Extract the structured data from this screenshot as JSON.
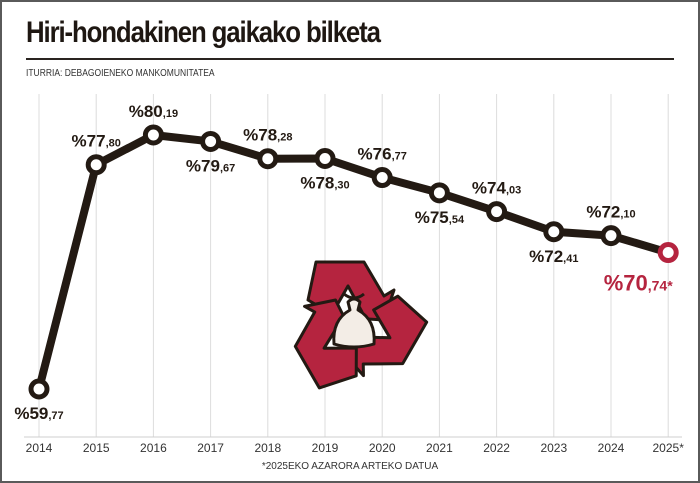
{
  "title": "Hiri-hondakinen gaikako bilketa",
  "source": "ITURRIA: DEBAGOIENEKO MANKOMUNITATEA",
  "footnote": "*2025EKO AZARORA ARTEKO DATUA",
  "colors": {
    "line": "#231a13",
    "highlight": "#b5243f",
    "grid": "#dcdcdc"
  },
  "icon": "recycling-bag-icon",
  "chart_data": {
    "type": "line",
    "title": "Hiri-hondakinen gaikako bilketa",
    "xlabel": "",
    "ylabel": "",
    "categories": [
      "2014",
      "2015",
      "2016",
      "2017",
      "2018",
      "2019",
      "2020",
      "2021",
      "2022",
      "2023",
      "2024",
      "2025*"
    ],
    "values": [
      59.77,
      77.8,
      80.19,
      79.67,
      78.28,
      78.3,
      76.77,
      75.54,
      74.03,
      72.41,
      72.1,
      70.74
    ],
    "labels": [
      {
        "int": "%59",
        "dec": ",77",
        "pos": "below"
      },
      {
        "int": "%77",
        "dec": ",80",
        "pos": "above"
      },
      {
        "int": "%80",
        "dec": ",19",
        "pos": "above"
      },
      {
        "int": "%79",
        "dec": ",67",
        "pos": "below"
      },
      {
        "int": "%78",
        "dec": ",28",
        "pos": "above"
      },
      {
        "int": "%78",
        "dec": ",30",
        "pos": "below"
      },
      {
        "int": "%76",
        "dec": ",77",
        "pos": "above"
      },
      {
        "int": "%75",
        "dec": ",54",
        "pos": "below"
      },
      {
        "int": "%74",
        "dec": ",03",
        "pos": "above"
      },
      {
        "int": "%72",
        "dec": ",41",
        "pos": "below"
      },
      {
        "int": "%72",
        "dec": ",10",
        "pos": "above"
      },
      {
        "int": "%70",
        "dec": ",74*",
        "pos": "below"
      }
    ],
    "highlight_last": true,
    "grid": "vertical",
    "legend": "none"
  }
}
